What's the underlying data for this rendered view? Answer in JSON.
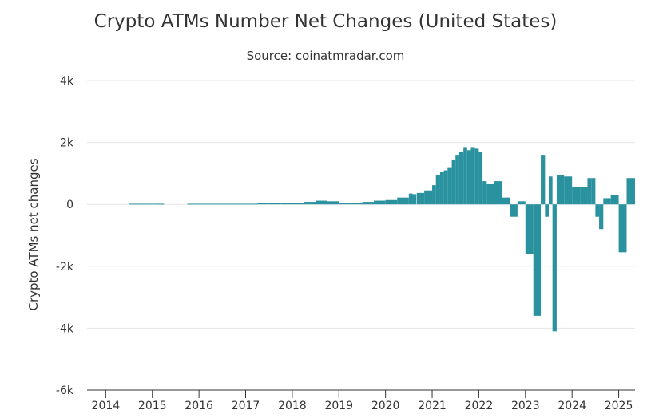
{
  "chart_data": {
    "type": "bar",
    "title": "Crypto ATMs Number Net Changes (United States)",
    "subtitle": "Source: coinatmradar.com",
    "ylabel": "Crypto ATMs net changes",
    "xlabel": "",
    "ylim": [
      -6000,
      4000
    ],
    "xlim": [
      2013.6,
      2025.35
    ],
    "y_ticks": [
      {
        "value": 4000,
        "label": "4k"
      },
      {
        "value": 2000,
        "label": "2k"
      },
      {
        "value": 0,
        "label": "0"
      },
      {
        "value": -2000,
        "label": "-2k"
      },
      {
        "value": -4000,
        "label": "-4k"
      },
      {
        "value": -6000,
        "label": "-6k"
      }
    ],
    "x_ticks": [
      {
        "value": 2014,
        "label": "2014"
      },
      {
        "value": 2015,
        "label": "2015"
      },
      {
        "value": 2016,
        "label": "2016"
      },
      {
        "value": 2017,
        "label": "2017"
      },
      {
        "value": 2018,
        "label": "2018"
      },
      {
        "value": 2019,
        "label": "2019"
      },
      {
        "value": 2020,
        "label": "2020"
      },
      {
        "value": 2021,
        "label": "2021"
      },
      {
        "value": 2022,
        "label": "2022"
      },
      {
        "value": 2023,
        "label": "2023"
      },
      {
        "value": 2024,
        "label": "2024"
      },
      {
        "value": 2025,
        "label": "2025"
      }
    ],
    "grid": true,
    "legend": "none",
    "color": "#2A929F",
    "series": [
      {
        "x": [
          2014.5,
          2014.75,
          2015.0,
          2015.75,
          2016.0,
          2016.25,
          2016.5,
          2016.75,
          2017.0,
          2017.25,
          2017.5,
          2017.75,
          2018.0,
          2018.25,
          2018.5,
          2018.75,
          2019.0,
          2019.25,
          2019.5,
          2019.75,
          2020.0,
          2020.25,
          2020.5,
          2020.58,
          2020.67,
          2020.83,
          2021.0,
          2021.08,
          2021.17,
          2021.25,
          2021.33,
          2021.42,
          2021.5,
          2021.58,
          2021.67,
          2021.75,
          2021.83,
          2021.92,
          2022.0,
          2022.08,
          2022.17,
          2022.33,
          2022.5,
          2022.67,
          2022.83,
          2023.0,
          2023.17,
          2023.33,
          2023.42,
          2023.5,
          2023.58,
          2023.67,
          2023.83,
          2024.0,
          2024.17,
          2024.33,
          2024.42,
          2024.5,
          2024.58,
          2024.67,
          2024.83,
          2025.0,
          2025.17
        ],
        "values": [
          20,
          20,
          20,
          20,
          20,
          20,
          20,
          20,
          20,
          40,
          40,
          40,
          50,
          80,
          120,
          100,
          30,
          50,
          80,
          120,
          140,
          220,
          350,
          330,
          370,
          450,
          620,
          950,
          1050,
          1100,
          1200,
          1450,
          1600,
          1700,
          1850,
          1750,
          1850,
          1800,
          1700,
          750,
          650,
          750,
          220,
          -400,
          100,
          -1600,
          -3600,
          1600,
          -400,
          900,
          -4100,
          950,
          900,
          550,
          550,
          850,
          850,
          -400,
          -800,
          200,
          300,
          -1550,
          850
        ],
        "width": [
          0.25,
          0.25,
          0.25,
          0.25,
          0.25,
          0.25,
          0.25,
          0.25,
          0.25,
          0.25,
          0.25,
          0.25,
          0.25,
          0.25,
          0.25,
          0.25,
          0.25,
          0.25,
          0.25,
          0.25,
          0.25,
          0.25,
          0.08,
          0.08,
          0.16,
          0.17,
          0.08,
          0.09,
          0.08,
          0.08,
          0.09,
          0.08,
          0.08,
          0.09,
          0.08,
          0.08,
          0.09,
          0.08,
          0.08,
          0.09,
          0.16,
          0.17,
          0.17,
          0.16,
          0.17,
          0.17,
          0.16,
          0.09,
          0.08,
          0.08,
          0.09,
          0.16,
          0.17,
          0.17,
          0.16,
          0.09,
          0.08,
          0.08,
          0.09,
          0.16,
          0.17,
          0.17,
          0.18
        ]
      }
    ]
  }
}
